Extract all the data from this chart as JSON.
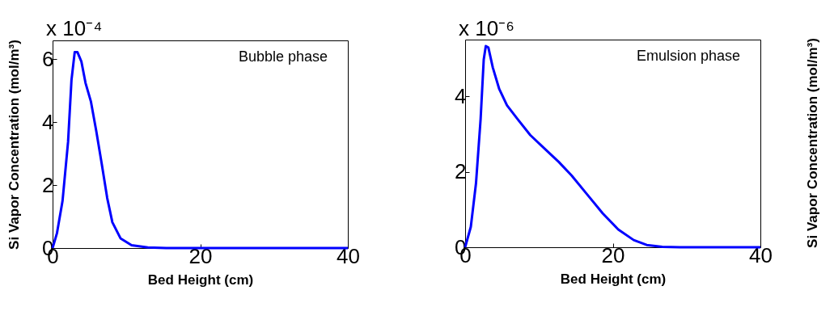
{
  "chart_data": [
    {
      "type": "line",
      "xlabel": "Bed Height (cm)",
      "ylabel": "Si Vapor Concentration (mol/m³)",
      "annotations": [
        "x 10⁻⁴",
        "Bubble phase"
      ],
      "x": [
        0,
        0.6,
        1.35,
        2.1,
        2.56,
        3.0,
        3.36,
        3.9,
        4.46,
        5.2,
        5.92,
        6.65,
        7.4,
        8.1,
        9.2,
        10.7,
        12.9,
        15.4,
        40
      ],
      "series": [
        {
          "color": "#0000ff",
          "values": [
            0,
            0.48,
            1.5,
            3.38,
            5.34,
            6.23,
            6.23,
            5.93,
            5.25,
            4.65,
            3.72,
            2.69,
            1.59,
            0.82,
            0.31,
            0.09,
            0.02,
            0,
            0
          ]
        }
      ],
      "xlim": [
        0,
        40
      ],
      "xticks": [
        0,
        20,
        40
      ],
      "ylim": [
        0,
        6.6
      ],
      "yticks": [
        0,
        2,
        4,
        6
      ],
      "grid": false
    },
    {
      "type": "line",
      "xlabel": "Bed Height (cm)",
      "annotations": [
        "x 10⁻⁶",
        "Emulsion phase",
        "Si Vapor Concentration (mol/m³)"
      ],
      "x": [
        0,
        0.77,
        1.47,
        2.1,
        2.52,
        2.8,
        3.15,
        3.75,
        4.62,
        5.67,
        7.08,
        8.83,
        10.93,
        12.68,
        14.43,
        16.53,
        18.63,
        20.74,
        22.84,
        24.6,
        26.7,
        29.1,
        40
      ],
      "series": [
        {
          "color": "#0000ff",
          "values": [
            0,
            0.54,
            1.69,
            3.4,
            4.97,
            5.33,
            5.29,
            4.76,
            4.19,
            3.76,
            3.4,
            2.97,
            2.58,
            2.26,
            1.9,
            1.4,
            0.9,
            0.47,
            0.19,
            0.06,
            0.01,
            0,
            0
          ]
        }
      ],
      "xlim": [
        0,
        40
      ],
      "xticks": [
        0,
        20,
        40
      ],
      "ylim": [
        0,
        5.5
      ],
      "yticks": [
        0,
        2,
        4
      ],
      "grid": false
    }
  ]
}
